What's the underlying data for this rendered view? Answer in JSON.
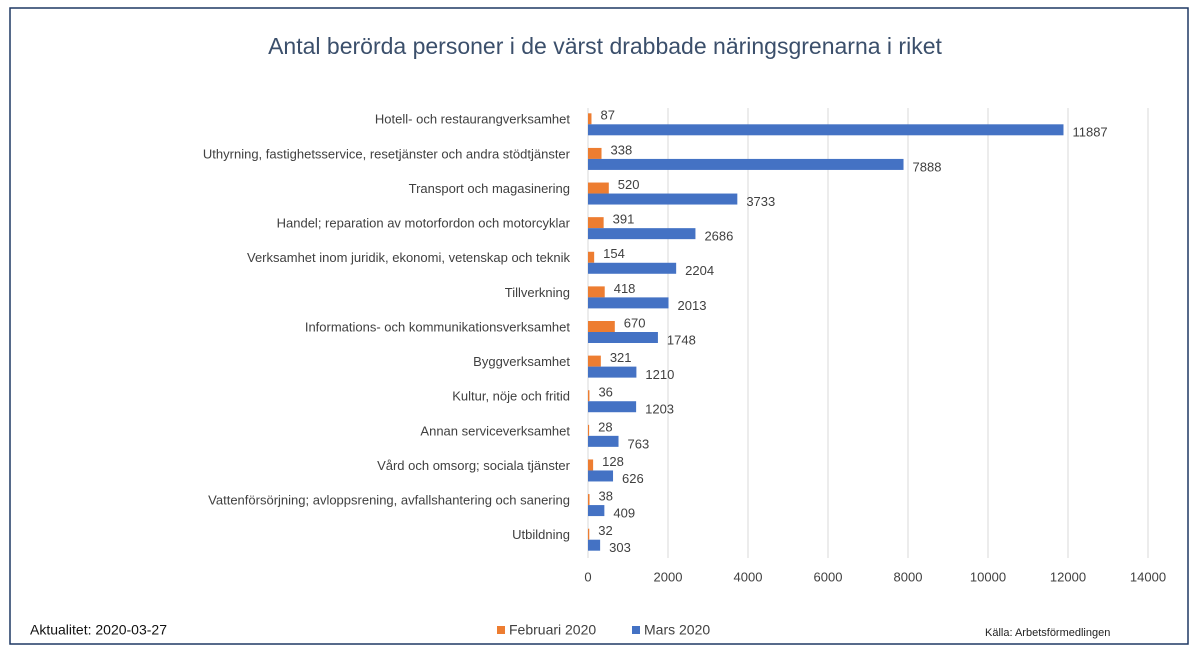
{
  "chart_data": {
    "type": "hbar",
    "title": "Antal berörda personer i de värst drabbade näringsgrenarna  i riket",
    "categories": [
      "Hotell- och restaurangverksamhet",
      "Uthyrning, fastighetsservice, resetjänster och andra stödtjänster",
      "Transport och magasinering",
      "Handel; reparation av motorfordon och motorcyklar",
      "Verksamhet inom juridik, ekonomi, vetenskap och teknik",
      "Tillverkning",
      "Informations- och kommunikationsverksamhet",
      "Byggverksamhet",
      "Kultur, nöje och fritid",
      "Annan serviceverksamhet",
      "Vård och omsorg; sociala tjänster",
      "Vattenförsörjning; avloppsrening, avfallshantering och sanering",
      "Utbildning"
    ],
    "series": [
      {
        "name": "Februari 2020",
        "color": "#ed7d31",
        "values": [
          87,
          338,
          520,
          391,
          154,
          418,
          670,
          321,
          36,
          28,
          128,
          38,
          32
        ]
      },
      {
        "name": "Mars 2020",
        "color": "#4472c4",
        "values": [
          11887,
          7888,
          3733,
          2686,
          2204,
          2013,
          1748,
          1210,
          1203,
          763,
          626,
          409,
          303
        ]
      }
    ],
    "xlim": [
      0,
      14000
    ],
    "xticks": [
      0,
      2000,
      4000,
      6000,
      8000,
      10000,
      12000,
      14000
    ],
    "grid": true,
    "note": "Aktualitet: 2020-03-27",
    "source": "Källa: Arbetsförmedlingen"
  }
}
